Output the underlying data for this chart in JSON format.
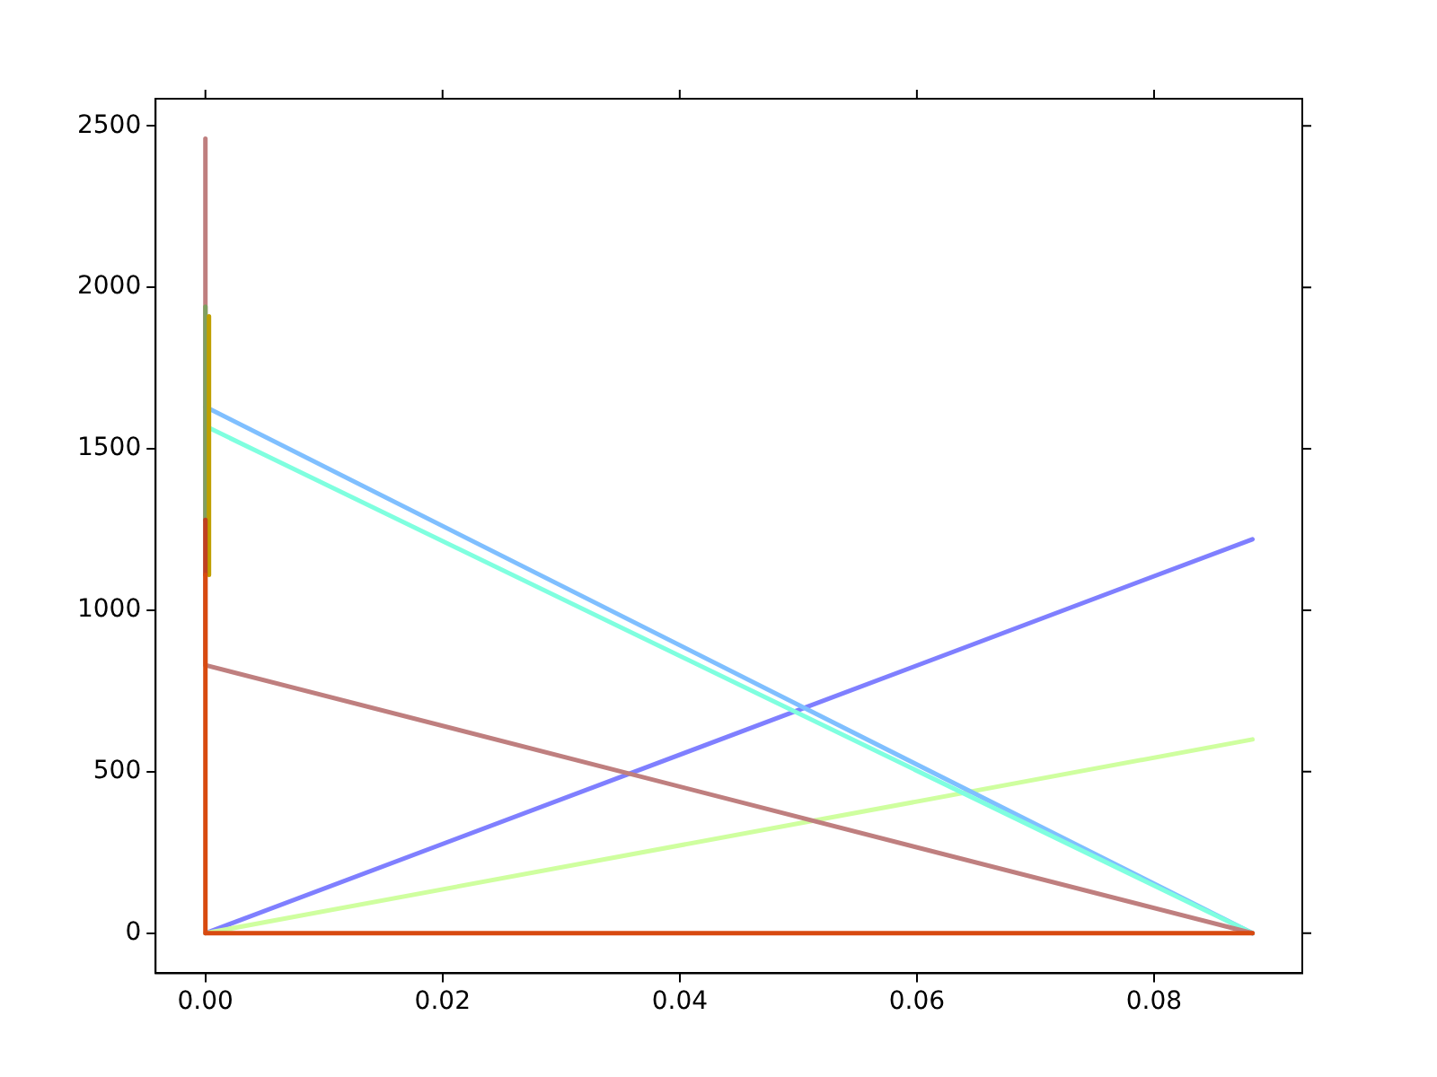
{
  "chart_data": {
    "type": "line",
    "xlim": [
      -0.0042,
      0.0925
    ],
    "ylim": [
      -124,
      2584
    ],
    "xticks": [
      {
        "value": 0,
        "label": "0.00"
      },
      {
        "value": 0.02,
        "label": "0.02"
      },
      {
        "value": 0.04,
        "label": "0.04"
      },
      {
        "value": 0.06,
        "label": "0.06"
      },
      {
        "value": 0.08,
        "label": "0.08"
      }
    ],
    "yticks": [
      0,
      500,
      1000,
      1500,
      2000,
      2500
    ],
    "grid": false,
    "legend": false,
    "marker": "none",
    "line_style": "solid",
    "series": [
      {
        "color": "#7f7fff",
        "x": [
          0,
          0.0883
        ],
        "values": [
          0,
          1220
        ]
      },
      {
        "color": "#cfff9f",
        "x": [
          0,
          0.0883
        ],
        "values": [
          0,
          600
        ]
      },
      {
        "color": "#7fbfff",
        "x": [
          0,
          0.0883
        ],
        "values": [
          1630,
          0
        ]
      },
      {
        "color": "#7fffdf",
        "x": [
          0,
          0.0883
        ],
        "values": [
          1570,
          0
        ]
      },
      {
        "color": "#bf7f7f",
        "x": [
          0,
          0,
          0.0883
        ],
        "values": [
          2460,
          830,
          0
        ]
      },
      {
        "color": "#7f9f5f",
        "x": [
          0,
          0
        ],
        "values": [
          1940,
          1280
        ]
      },
      {
        "color": "#bfa000",
        "x": [
          0.0003,
          0.0003
        ],
        "values": [
          1910,
          1110
        ]
      },
      {
        "color": "#c04020",
        "x": [
          0,
          0
        ],
        "values": [
          1280,
          1110
        ]
      },
      {
        "color": "#d84a10",
        "x": [
          0,
          0,
          0.0883
        ],
        "values": [
          1110,
          0,
          0
        ]
      }
    ]
  }
}
